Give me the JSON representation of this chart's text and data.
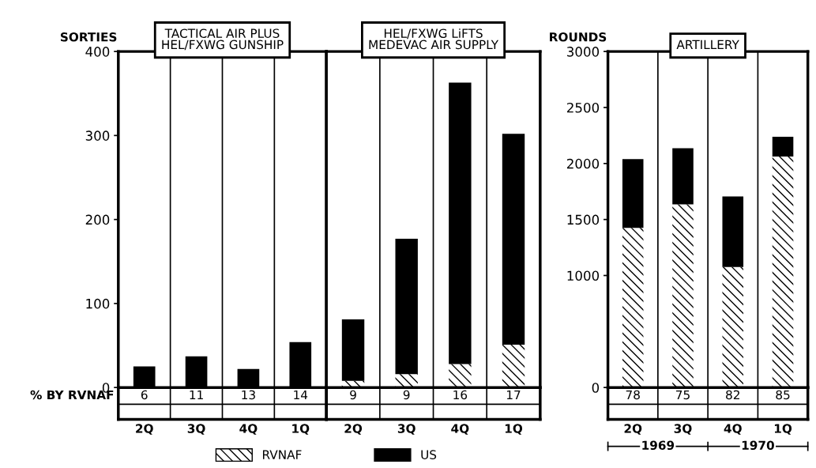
{
  "chart_data": [
    {
      "type": "bar",
      "title": "TACTICAL AIR PLUS\nHEL/FXWG GUNSHIP",
      "ylabel": "SORTIES",
      "categories": [
        "2Q",
        "3Q",
        "4Q",
        "1Q"
      ],
      "stacked": true,
      "series": [
        {
          "name": "RVNAF",
          "color": "#000000",
          "values": [
            null,
            null,
            null,
            null
          ]
        },
        {
          "name": "US",
          "color": "#000000",
          "values": [
            25,
            37,
            22,
            54
          ]
        }
      ],
      "ylim": [
        0,
        400
      ],
      "yticks": [
        0,
        100,
        200,
        300,
        400
      ],
      "legend": "bottom",
      "grid": false,
      "annotations": [
        "% BY RVNAF",
        "6",
        "11",
        "13",
        "14"
      ]
    },
    {
      "type": "bar",
      "title": "HEL/FXWG LiFTS\nMEDEVAC AIR SUPPLY",
      "categories": [
        "2Q",
        "3Q",
        "4Q",
        "1Q"
      ],
      "stacked": true,
      "series": [
        {
          "color": "#000000",
          "values": [
            8,
            16,
            28,
            51
          ]
        },
        {
          "color": "#000000",
          "values": [
            73,
            161,
            335,
            251
          ]
        }
      ],
      "ylim": [
        0,
        400
      ],
      "tick_labels": "x",
      "grid": false,
      "annotations": [
        "9",
        "9",
        "16",
        "17"
      ]
    },
    {
      "type": "bar",
      "title": "ARTILLERY",
      "ylabel": "ROUNDS",
      "categories": [
        "2Q",
        "3Q",
        "4Q",
        "1Q"
      ],
      "stacked": true,
      "series": [
        {
          "color": "#000000",
          "values": [
            1425,
            1635,
            1075,
            2062
          ]
        },
        {
          "color": "#000000",
          "values": [
            615,
            502,
            630,
            176
          ]
        }
      ],
      "ylim": [
        0,
        3000
      ],
      "yticks": [
        0,
        1000,
        1500,
        2000,
        2500,
        3000
      ],
      "grid": false,
      "annotations": [
        "78",
        "75",
        "82",
        "85",
        "1969",
        "1970"
      ]
    }
  ]
}
